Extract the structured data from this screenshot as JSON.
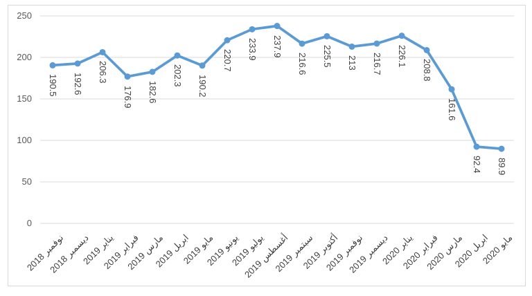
{
  "chart_data": {
    "type": "line",
    "title": "",
    "xlabel": "",
    "ylabel": "",
    "categories": [
      "نوفمبر 2018",
      "ديسمبر 2018",
      "يناير 2019",
      "فبراير 2019",
      "مارس 2019",
      "ابريل 2019",
      "مايو 2019",
      "يونيو 2019",
      "يوليو 2019",
      "أغسطس 2019",
      "سبتمبر 2019",
      "أكتوبر 2019",
      "نوفمبر 2019",
      "ديسمبر 2019",
      "يناير 2020",
      "فبراير 2020",
      "مارس 2020",
      "ابريل 2020",
      "مايو 2020"
    ],
    "series": [
      {
        "name": "",
        "values": [
          190.5,
          192.6,
          206.3,
          176.9,
          182.6,
          202.3,
          190.2,
          220.7,
          233.9,
          237.9,
          216.6,
          225.5,
          213,
          216.7,
          226.1,
          208.8,
          161.6,
          92.4,
          89.9
        ],
        "data_labels": [
          "190.5",
          "192.6",
          "206.3",
          "176.9",
          "182.6",
          "202.3",
          "190.2",
          "220.7",
          "233.9",
          "237.9",
          "216.6",
          "225.5",
          "213",
          "216.7",
          "226.1",
          "208.8",
          "161.6",
          "92.4",
          "89.9"
        ]
      }
    ],
    "ylim": [
      0,
      250
    ],
    "y_ticks": [
      "0",
      "50",
      "100",
      "150",
      "200",
      "250"
    ],
    "y_tick_values": [
      0,
      50,
      100,
      150,
      200,
      250
    ],
    "grid": true,
    "legend": false,
    "data_label_rotation_deg": 90,
    "x_label_rotation_deg": -45,
    "colors": {
      "series_line": "#5B9BD5",
      "marker_fill": "#5B9BD5",
      "data_label_text": "#3f3f3f",
      "x_label_text": "#404040",
      "y_label_text": "#595959",
      "gridline": "#D9D9D9",
      "chart_border": "#D9D9D9",
      "background": "#ffffff"
    }
  }
}
